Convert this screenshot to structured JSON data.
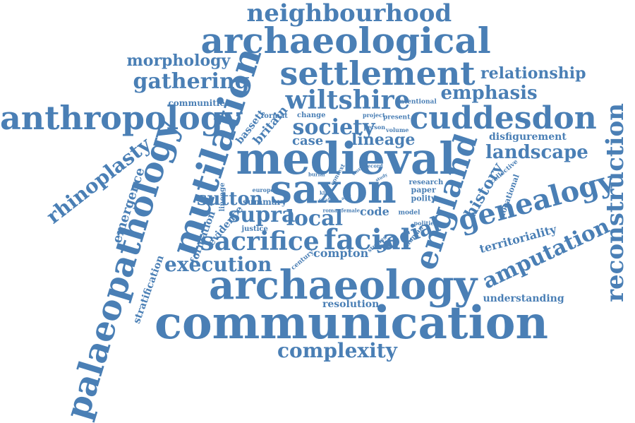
{
  "cloud": {
    "color": "#4a7fb5",
    "words": [
      "neighbourhood",
      "archaeological",
      "morphology",
      "settlement",
      "relationship",
      "gathering",
      "emphasis",
      "wiltshire",
      "communities",
      "intentional",
      "anthropology",
      "cuddesdon",
      "mutilation",
      "society",
      "bassett",
      "britain",
      "format",
      "change",
      "project",
      "present",
      "volume",
      "person",
      "lineage",
      "disfigurement",
      "rhinoplasty",
      "palaeopathology",
      "medieval",
      "landscape",
      "reconstruction",
      "england",
      "burial",
      "context",
      "world",
      "record",
      "study",
      "collective",
      "locational",
      "emergence",
      "europe",
      "lineage",
      "saxon",
      "history",
      "genealogy",
      "research",
      "paper",
      "polity",
      "sutton",
      "king",
      "scale",
      "area",
      "summary",
      "supra",
      "local",
      "evidence",
      "justice",
      "roman",
      "female",
      "code",
      "model",
      "polities",
      "territoriality",
      "formation",
      "sacrifice",
      "facial",
      "social",
      "human",
      "studies",
      "amputation",
      "compton",
      "century",
      "stratification",
      "execution",
      "archaeology",
      "understanding",
      "resolution",
      "communication",
      "complexity",
      "case"
    ]
  }
}
